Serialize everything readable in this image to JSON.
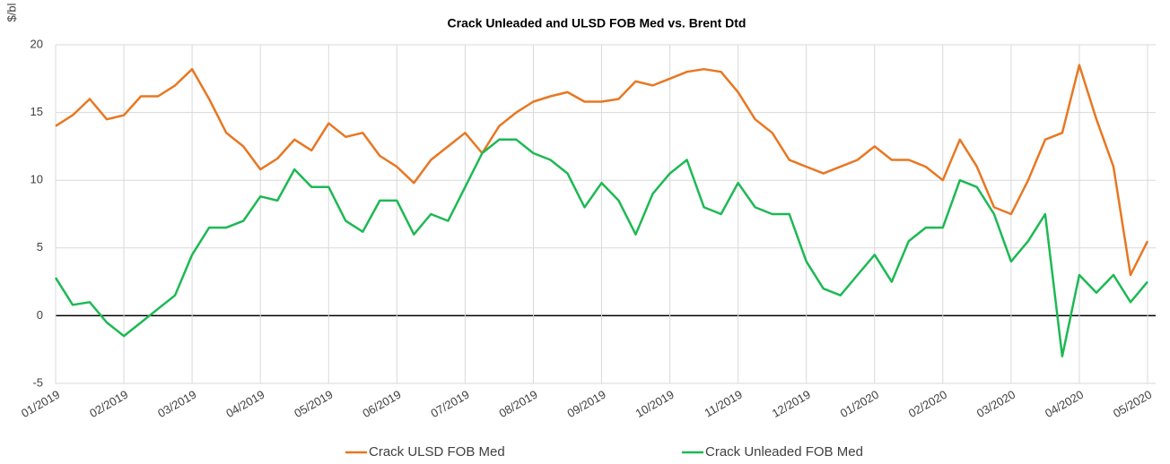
{
  "chart_data": {
    "type": "line",
    "title": "Crack Unleaded and ULSD FOB Med vs. Brent Dtd",
    "y_label": "$/bl",
    "categories": [
      "01/2019",
      null,
      null,
      null,
      "02/2019",
      null,
      null,
      null,
      "03/2019",
      null,
      null,
      null,
      "04/2019",
      null,
      null,
      null,
      "05/2019",
      null,
      null,
      null,
      "06/2019",
      null,
      null,
      null,
      "07/2019",
      null,
      null,
      null,
      "08/2019",
      null,
      null,
      null,
      "09/2019",
      null,
      null,
      null,
      "10/2019",
      null,
      null,
      null,
      "11/2019",
      null,
      null,
      null,
      "12/2019",
      null,
      null,
      null,
      "01/2020",
      null,
      null,
      null,
      "02/2020",
      null,
      null,
      null,
      "03/2020",
      null,
      null,
      null,
      "04/2020",
      null,
      null,
      null,
      "05/2020"
    ],
    "series": [
      {
        "name": "Crack ULSD FOB Med",
        "color": "#e87722",
        "values": [
          14,
          14.8,
          16,
          14.5,
          14.8,
          16.2,
          16.2,
          17,
          18.2,
          16,
          13.5,
          12.5,
          10.8,
          11.6,
          13,
          12.2,
          14.2,
          13.2,
          13.5,
          11.8,
          11,
          9.8,
          11.5,
          12.5,
          13.5,
          12,
          14,
          15,
          15.8,
          16.2,
          16.5,
          15.8,
          15.8,
          16,
          17.3,
          17,
          17.5,
          18,
          18.2,
          18,
          16.5,
          14.5,
          13.5,
          11.5,
          11,
          10.5,
          11,
          11.5,
          12.5,
          11.5,
          11.5,
          11,
          10,
          13,
          11,
          8,
          7.5,
          10,
          13,
          13.5,
          18.5,
          14.5,
          11,
          3,
          5.5
        ]
      },
      {
        "name": "Crack Unleaded FOB Med",
        "color": "#1db954",
        "values": [
          2.8,
          0.8,
          1,
          -0.5,
          -1.5,
          -0.5,
          0.5,
          1.5,
          4.5,
          6.5,
          6.5,
          7,
          8.8,
          8.5,
          10.8,
          9.5,
          9.5,
          7,
          6.2,
          8.5,
          8.5,
          6,
          7.5,
          7,
          9.5,
          12,
          13,
          13,
          12,
          11.5,
          10.5,
          8,
          9.8,
          8.5,
          6,
          9,
          10.5,
          11.5,
          8,
          7.5,
          9.8,
          8,
          7.5,
          7.5,
          4,
          2,
          1.5,
          3,
          4.5,
          2.5,
          5.5,
          6.5,
          6.5,
          10,
          9.5,
          7.5,
          4,
          5.5,
          7.5,
          -3,
          3,
          1.7,
          3,
          1,
          2.5
        ]
      }
    ],
    "ylim": [
      -5,
      20
    ],
    "yticks": [
      -5,
      0,
      5,
      10,
      15,
      20
    ],
    "grid": true,
    "legend": "bottom"
  }
}
